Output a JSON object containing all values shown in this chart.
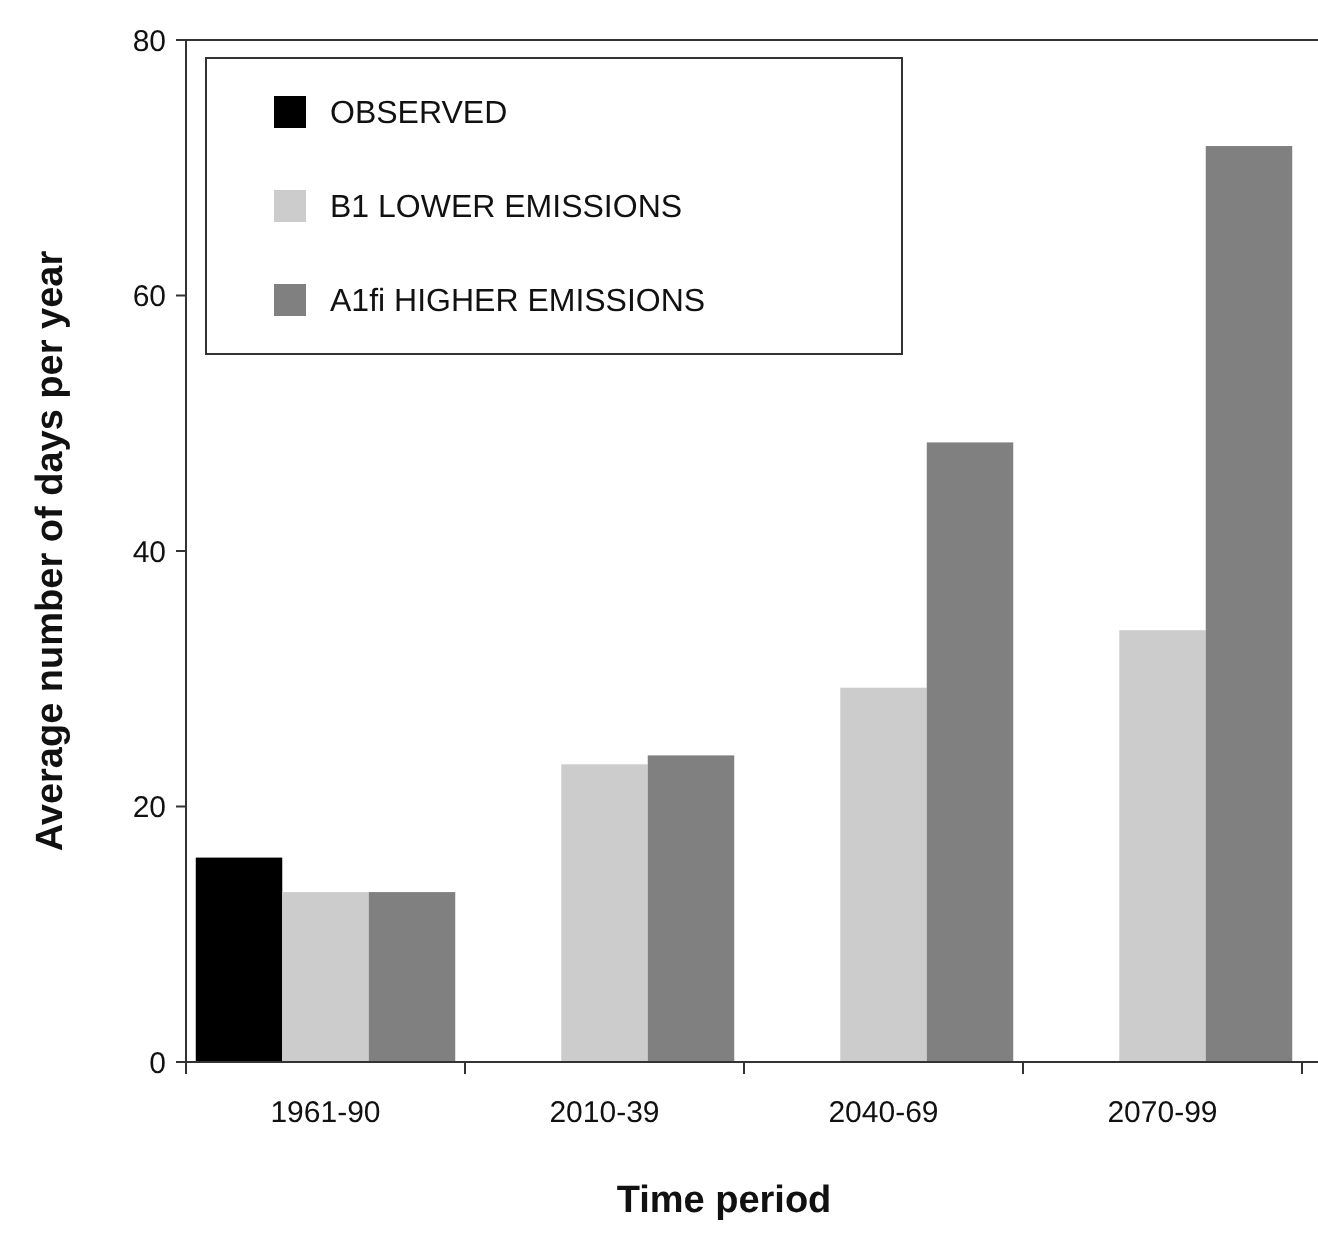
{
  "chart_data": {
    "type": "bar",
    "xlabel": "Time period",
    "ylabel": "Average number of days per year",
    "categories": [
      "1961-90",
      "2010-39",
      "2040-69",
      "2070-99"
    ],
    "series": [
      {
        "name": "OBSERVED",
        "color": "#000000",
        "values": [
          16,
          null,
          null,
          null
        ]
      },
      {
        "name": "B1 LOWER EMISSIONS",
        "color": "#cccccc",
        "values": [
          13.3,
          23.3,
          29.3,
          33.8
        ]
      },
      {
        "name": "A1fi HIGHER EMISSIONS",
        "color": "#808080",
        "values": [
          13.3,
          24,
          48.5,
          71.7
        ]
      }
    ],
    "ylim": [
      0,
      80
    ],
    "yticks": [
      0,
      20,
      40,
      60,
      80
    ],
    "grid": false,
    "legend": "top left"
  }
}
